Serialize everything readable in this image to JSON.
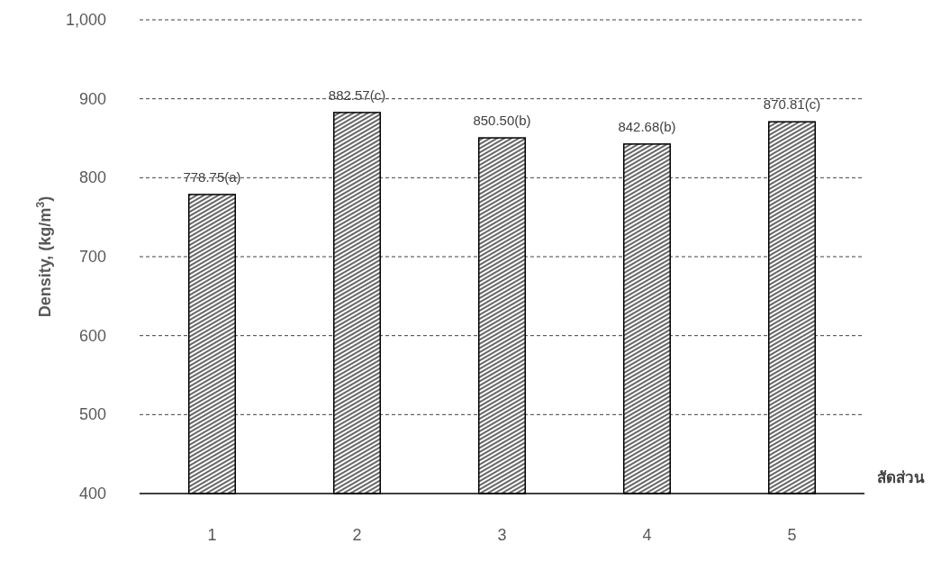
{
  "chart_data": {
    "type": "bar",
    "categories": [
      "1",
      "2",
      "3",
      "4",
      "5"
    ],
    "values": [
      778.75,
      882.57,
      850.5,
      842.68,
      870.81
    ],
    "value_labels": [
      "778.75(a)",
      "882.57(c)",
      "850.50(b)",
      "842.68(b)",
      "870.81(c)"
    ],
    "color": "#000000",
    "xlabel": "สัดส่วน",
    "ylabel": "Density, (kg/m$^{3}$)",
    "ylim": [
      400,
      1000
    ],
    "yticks": [
      400,
      500,
      600,
      700,
      800,
      900,
      {
        "value": 1000,
        "label": "1,000"
      }
    ],
    "grid": "y"
  }
}
